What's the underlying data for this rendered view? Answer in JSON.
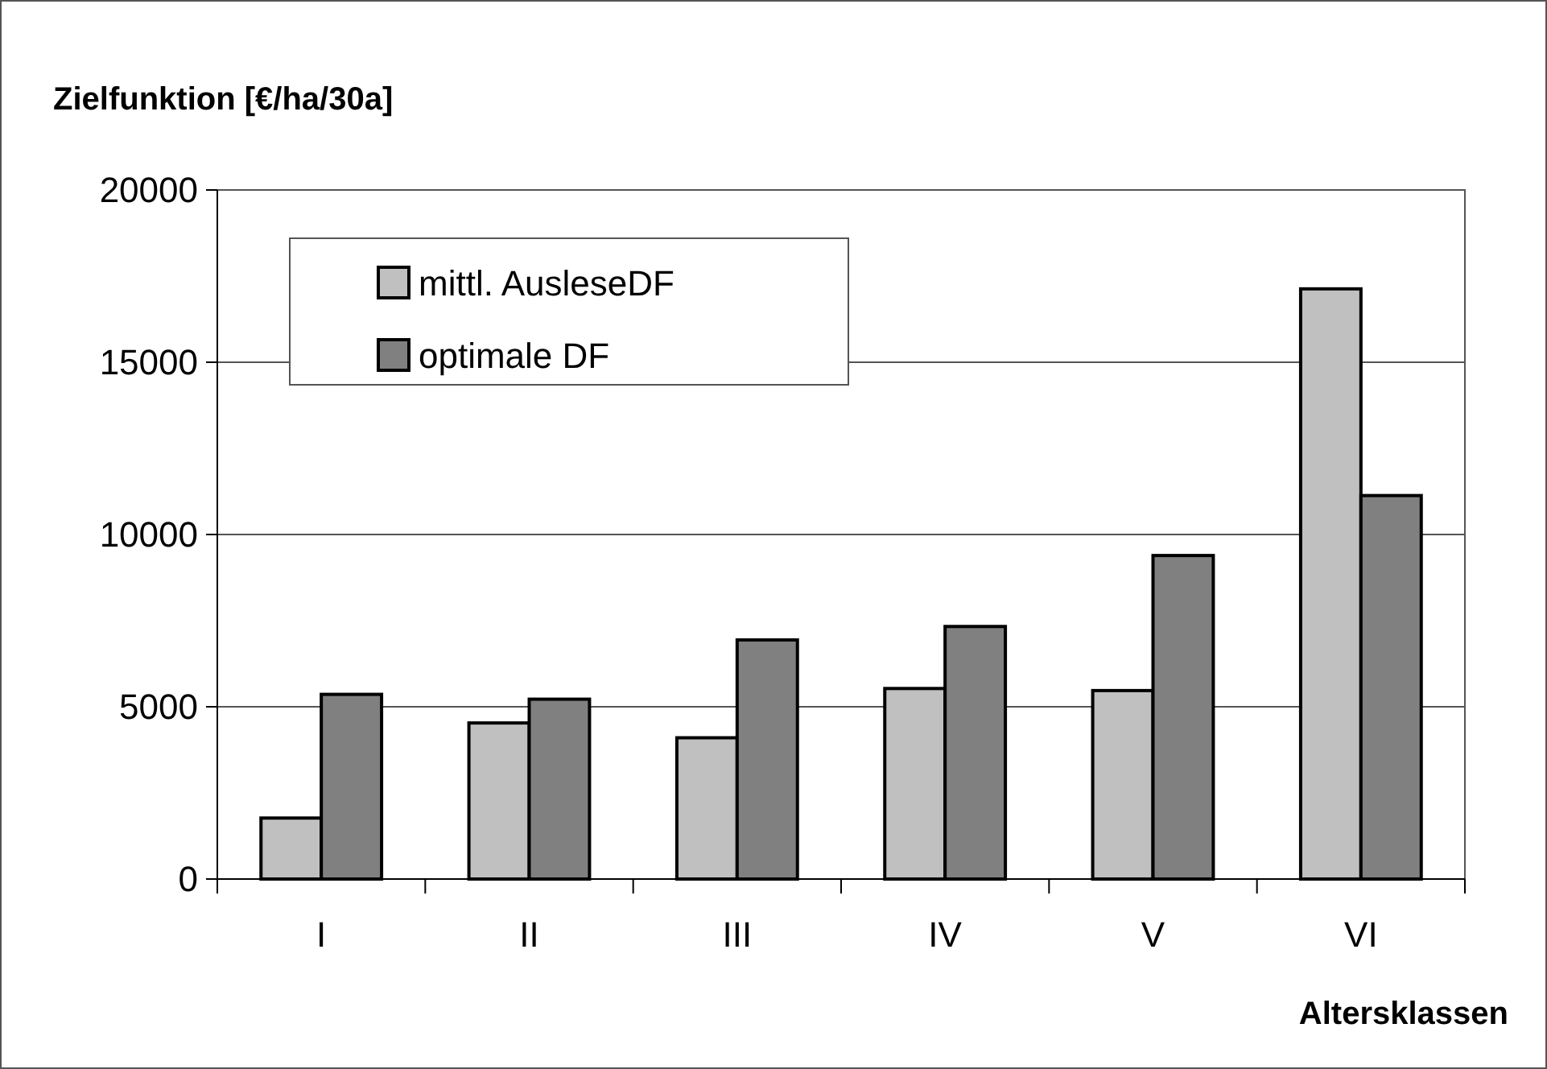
{
  "chart_data": {
    "type": "bar",
    "title": "Zielfunktion [€/ha/30a]",
    "xlabel": "Altersklassen",
    "categories": [
      "I",
      "II",
      "III",
      "IV",
      "V",
      "VI"
    ],
    "series": [
      {
        "name": "mittl. AusleseDF",
        "color": "#c0c0c0",
        "values": [
          1770,
          4530,
          4100,
          5530,
          5470,
          17130
        ]
      },
      {
        "name": "optimale DF",
        "color": "#808080",
        "values": [
          5360,
          5220,
          6940,
          7330,
          9390,
          11130
        ]
      }
    ],
    "ylim": [
      0,
      20000
    ],
    "yticks": [
      0,
      5000,
      10000,
      15000,
      20000
    ],
    "grid": "y",
    "legend": "top left"
  }
}
